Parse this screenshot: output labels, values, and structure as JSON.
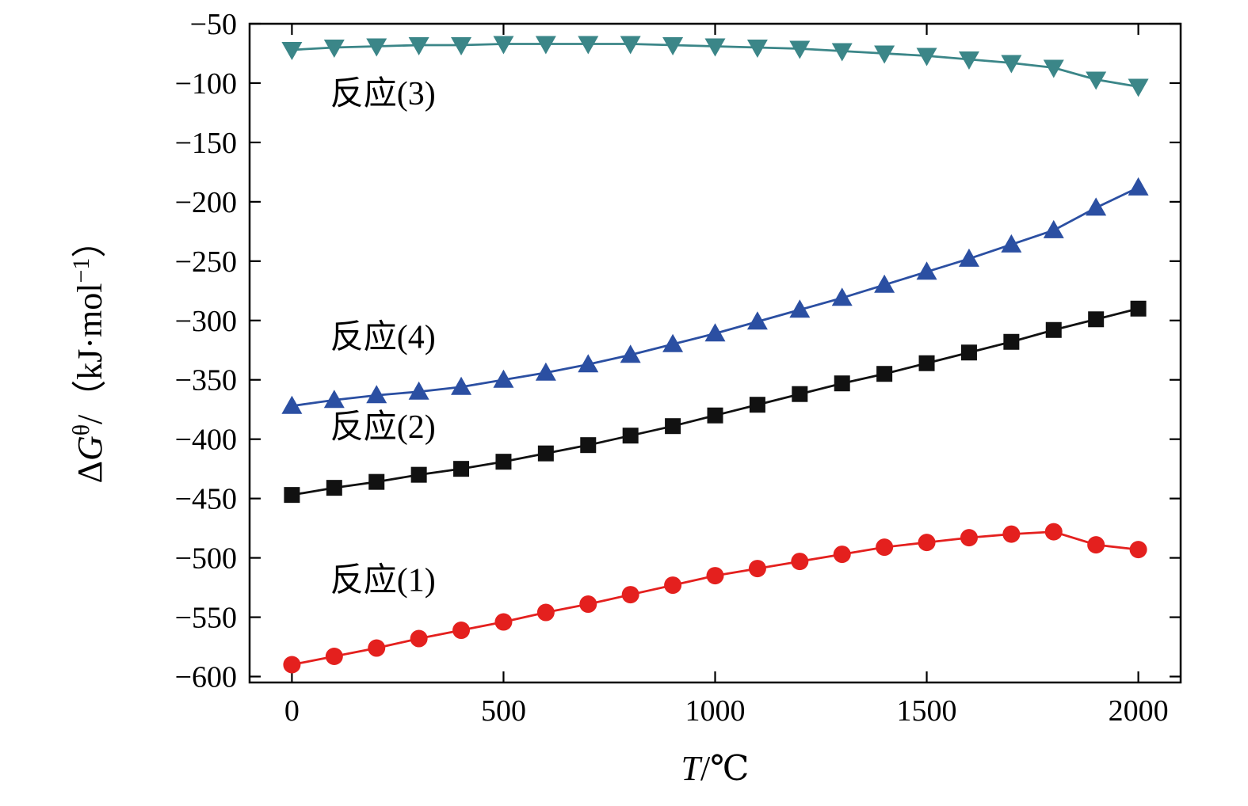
{
  "figure": {
    "background": "#ffffff"
  },
  "chart_data": {
    "type": "line",
    "title": "",
    "xlabel": "T/℃",
    "ylabel": "ΔGθ/（kJ·mol−1）",
    "xlabel_parts": [
      {
        "t": "T",
        "italic": true
      },
      {
        "t": "/℃"
      }
    ],
    "ylabel_parts": [
      {
        "t": "Δ"
      },
      {
        "t": "G",
        "italic": true
      },
      {
        "t": "θ",
        "sup": true
      },
      {
        "t": "/（kJ·mol"
      },
      {
        "t": "−1",
        "sup": true
      },
      {
        "t": "）"
      }
    ],
    "xlim": [
      -100,
      2100
    ],
    "ylim": [
      -605,
      -50
    ],
    "xticks": [
      0,
      500,
      1000,
      1500,
      2000
    ],
    "yticks": [
      -600,
      -550,
      -500,
      -450,
      -400,
      -350,
      -300,
      -250,
      -200,
      -150,
      -100,
      -50
    ],
    "grid": false,
    "legend_position": "none",
    "x": [
      0,
      100,
      200,
      300,
      400,
      500,
      600,
      700,
      800,
      900,
      1000,
      1100,
      1200,
      1300,
      1400,
      1500,
      1600,
      1700,
      1800,
      1900,
      2000
    ],
    "series": [
      {
        "name": "反应(3)",
        "marker": "triangle-down",
        "color": "#3b8688",
        "values": [
          -72,
          -70,
          -69,
          -68,
          -68,
          -67,
          -67,
          -67,
          -67,
          -68,
          -69,
          -70,
          -71,
          -73,
          -75,
          -77,
          -80,
          -83,
          -87,
          -97,
          -103
        ]
      },
      {
        "name": "反应(4)",
        "marker": "triangle-up",
        "color": "#2b4fa2",
        "values": [
          -372,
          -367,
          -363,
          -360,
          -356,
          -350,
          -344,
          -337,
          -329,
          -320,
          -311,
          -301,
          -291,
          -281,
          -270,
          -259,
          -248,
          -236,
          -224,
          -205,
          -188
        ]
      },
      {
        "name": "反应(2)",
        "marker": "square",
        "color": "#111111",
        "values": [
          -447,
          -441,
          -436,
          -430,
          -425,
          -419,
          -412,
          -405,
          -397,
          -389,
          -380,
          -371,
          -362,
          -353,
          -345,
          -336,
          -327,
          -318,
          -308,
          -299,
          -290
        ]
      },
      {
        "name": "反应(1)",
        "marker": "circle",
        "color": "#e4201e",
        "values": [
          -590,
          -583,
          -576,
          -568,
          -561,
          -554,
          -546,
          -539,
          -531,
          -523,
          -515,
          -509,
          -503,
          -497,
          -491,
          -487,
          -483,
          -480,
          -478,
          -489,
          -493
        ]
      }
    ],
    "annotations": [
      {
        "text": "反应(3)",
        "x": 215,
        "y": -118
      },
      {
        "text": "反应(4)",
        "x": 215,
        "y": -323
      },
      {
        "text": "反应(2)",
        "x": 215,
        "y": -399
      },
      {
        "text": "反应(1)",
        "x": 215,
        "y": -528
      }
    ]
  }
}
